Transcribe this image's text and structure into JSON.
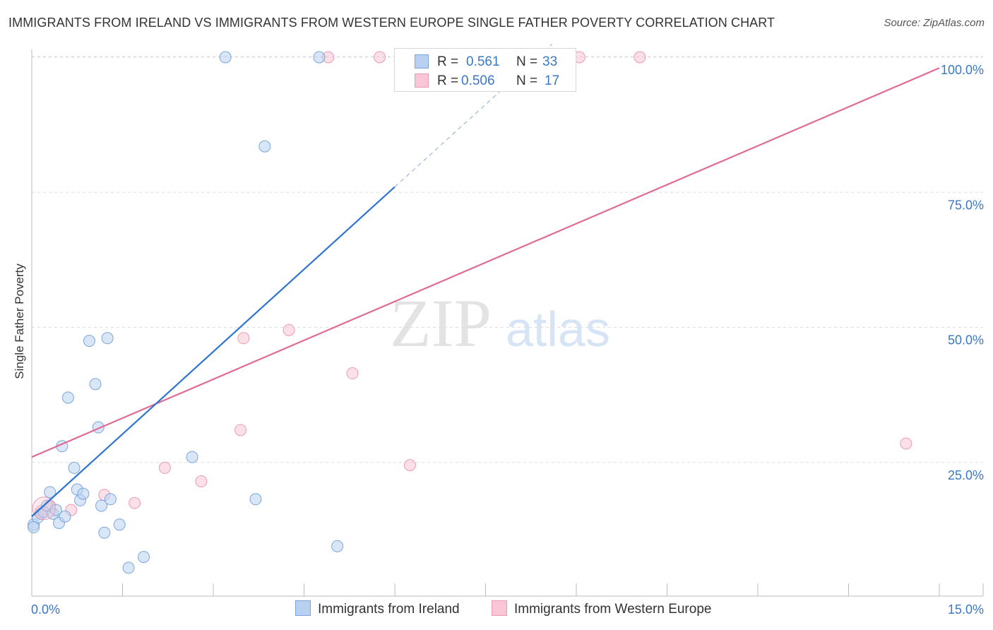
{
  "title": "IMMIGRANTS FROM IRELAND VS IMMIGRANTS FROM WESTERN EUROPE SINGLE FATHER POVERTY CORRELATION CHART",
  "source": "Source: ZipAtlas.com",
  "watermark": {
    "zip": "ZIP",
    "atlas": "atlas"
  },
  "legend": {
    "rows": [
      {
        "r_label": "R =",
        "r_value": "0.561",
        "n_label": "N =",
        "n_value": "33"
      },
      {
        "r_label": "R =",
        "r_value": "0.506",
        "n_label": "N =",
        "n_value": "17"
      }
    ]
  },
  "colors": {
    "ireland_fill": "#b9d1f0",
    "ireland_stroke": "#7aa6dc",
    "ireland_line": "#2f74cf",
    "weurope_fill": "#f8c6d5",
    "weurope_stroke": "#ea9bb5",
    "weurope_line": "#e06a93",
    "tick_text": "#3b78c4",
    "grid": "#dddddd"
  },
  "chart_data": {
    "type": "scatter",
    "title": "IMMIGRANTS FROM IRELAND VS IMMIGRANTS FROM WESTERN EUROPE SINGLE FATHER POVERTY CORRELATION CHART",
    "xlabel": "",
    "ylabel": "Single Father Poverty",
    "xlim": [
      0,
      15
    ],
    "ylim": [
      0,
      100
    ],
    "x_tick_labels": [
      "0.0%",
      "15.0%"
    ],
    "y_ticks": [
      {
        "value": 25,
        "label": "25.0%"
      },
      {
        "value": 50,
        "label": "50.0%"
      },
      {
        "value": 75,
        "label": "75.0%"
      },
      {
        "value": 100,
        "label": "100.0%"
      }
    ],
    "grid": true,
    "series": [
      {
        "name": "Immigrants from Ireland",
        "r": 0.561,
        "n": 33,
        "trend": {
          "x0": 0,
          "y0": 15,
          "x1": 6,
          "y1": 76,
          "dashed_to_x": 8.6
        },
        "points": [
          [
            0.03,
            13.5
          ],
          [
            0.1,
            14.8
          ],
          [
            0.15,
            15.5
          ],
          [
            0.2,
            15.8
          ],
          [
            0.25,
            17
          ],
          [
            0.3,
            19.5
          ],
          [
            0.35,
            15.5
          ],
          [
            0.4,
            16.2
          ],
          [
            0.45,
            13.8
          ],
          [
            0.5,
            28
          ],
          [
            0.55,
            15
          ],
          [
            0.6,
            37
          ],
          [
            0.7,
            24
          ],
          [
            0.75,
            20
          ],
          [
            0.8,
            18
          ],
          [
            0.85,
            19.2
          ],
          [
            0.95,
            47.5
          ],
          [
            1.05,
            39.5
          ],
          [
            1.1,
            31.5
          ],
          [
            1.15,
            17
          ],
          [
            1.2,
            12
          ],
          [
            1.25,
            48
          ],
          [
            1.3,
            18.2
          ],
          [
            1.45,
            13.5
          ],
          [
            1.6,
            5.5
          ],
          [
            1.85,
            7.5
          ],
          [
            2.65,
            26
          ],
          [
            3.2,
            100
          ],
          [
            3.7,
            18.2
          ],
          [
            3.85,
            83.5
          ],
          [
            4.75,
            100
          ],
          [
            5.05,
            9.5
          ],
          [
            0.03,
            13.0
          ]
        ]
      },
      {
        "name": "Immigrants from Western Europe",
        "r": 0.506,
        "n": 17,
        "trend": {
          "x0": 0,
          "y0": 26,
          "x1": 15,
          "y1": 98
        },
        "points": [
          [
            0.15,
            16
          ],
          [
            0.3,
            17
          ],
          [
            0.65,
            16.2
          ],
          [
            1.2,
            19
          ],
          [
            1.7,
            17.5
          ],
          [
            2.2,
            24
          ],
          [
            2.8,
            21.5
          ],
          [
            3.45,
            31
          ],
          [
            3.5,
            48
          ],
          [
            4.25,
            49.5
          ],
          [
            4.9,
            100
          ],
          [
            5.3,
            41.5
          ],
          [
            5.75,
            100
          ],
          [
            6.25,
            24.5
          ],
          [
            9.05,
            100
          ],
          [
            10.05,
            100
          ],
          [
            14.45,
            28.5
          ]
        ]
      }
    ]
  },
  "bottom_legend": {
    "ireland_label": "Immigrants from Ireland",
    "weurope_label": "Immigrants from Western Europe"
  }
}
